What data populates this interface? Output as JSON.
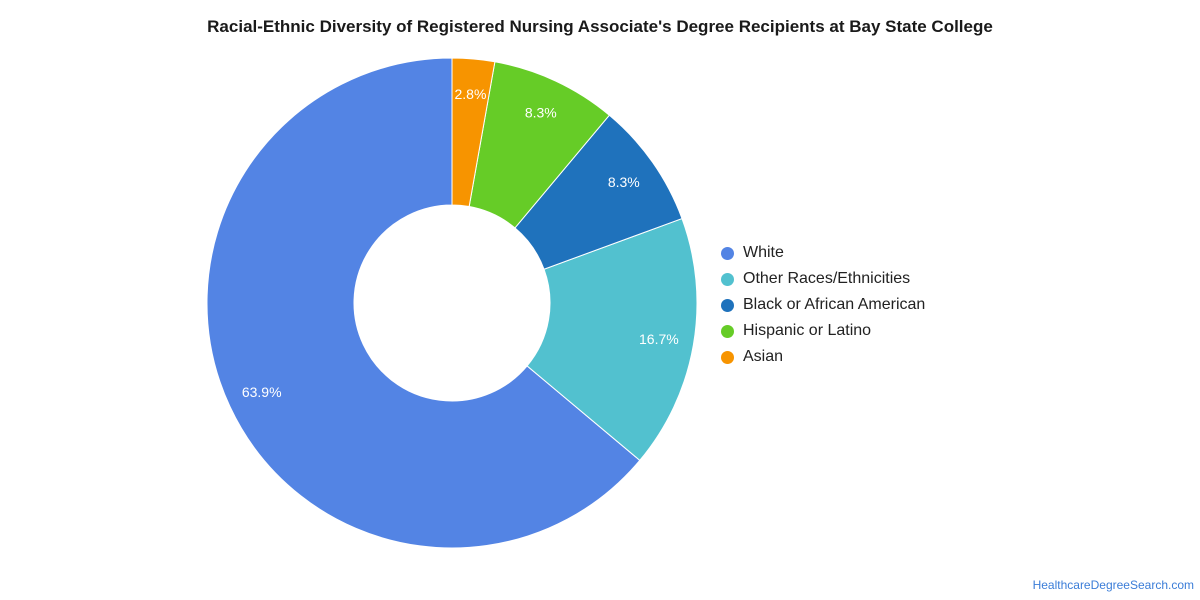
{
  "title": "Racial-Ethnic Diversity of Registered Nursing Associate's Degree Recipients at Bay State College",
  "source": "HealthcareDegreeSearch.com",
  "chart_data": {
    "type": "pie",
    "variant": "donut",
    "legend_position": "right",
    "slices": [
      {
        "label": "White",
        "value": 63.9,
        "display": "63.9%",
        "color": "#5384E4"
      },
      {
        "label": "Other Races/Ethnicities",
        "value": 16.7,
        "display": "16.7%",
        "color": "#52C1CF"
      },
      {
        "label": "Black or African American",
        "value": 8.3,
        "display": "8.3%",
        "color": "#1F72BC"
      },
      {
        "label": "Hispanic or Latino",
        "value": 8.3,
        "display": "8.3%",
        "color": "#66CC27"
      },
      {
        "label": "Asian",
        "value": 2.8,
        "display": "2.8%",
        "color": "#F79400"
      }
    ]
  }
}
